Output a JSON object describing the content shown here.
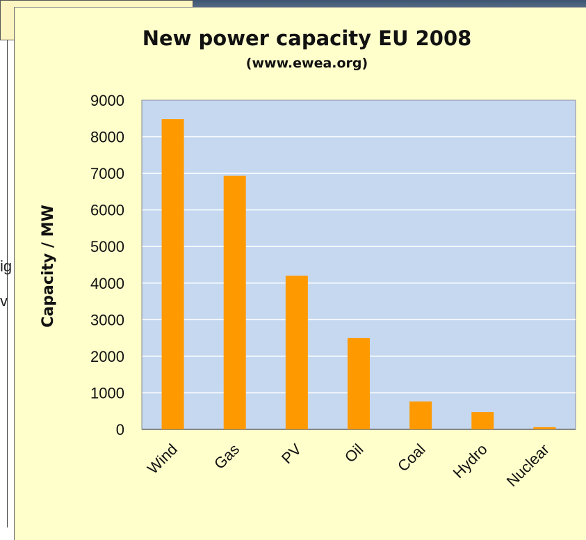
{
  "colors": {
    "plot_bg": "#c5d8f0",
    "bar": "#ff9900",
    "card_bg": "#ffffcc",
    "gridline": "#ffffff"
  },
  "background": {
    "frag1": "ig",
    "frag2": "v"
  },
  "chart_data": {
    "type": "bar",
    "title": "New power capacity EU 2008",
    "subtitle": "(www.ewea.org)",
    "xlabel": "",
    "ylabel": "Capacity / MW",
    "categories": [
      "Wind",
      "Gas",
      "PV",
      "Oil",
      "Coal",
      "Hydro",
      "Nuclear"
    ],
    "values": [
      8484,
      6932,
      4200,
      2495,
      762,
      473,
      60
    ],
    "ylim": [
      0,
      9000
    ],
    "yticks": [
      0,
      1000,
      2000,
      3000,
      4000,
      5000,
      6000,
      7000,
      8000,
      9000
    ],
    "grid": true,
    "legend": false
  }
}
